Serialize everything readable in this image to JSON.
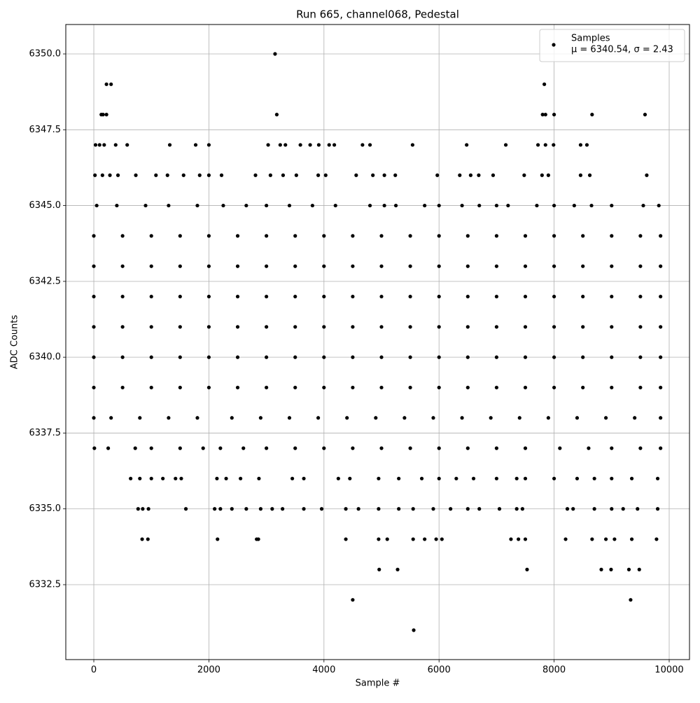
{
  "chart_data": {
    "type": "scatter",
    "title": "Run 665, channel068, Pedestal",
    "x_label": "Sample #",
    "y_label": "ADC Counts",
    "legend_stats": "μ = 6340.54, σ = 2.43",
    "legend_position": "upper right",
    "grid": true,
    "xlim": [
      -487,
      10353
    ],
    "xticks": [
      0,
      2000,
      4000,
      6000,
      8000,
      10000
    ],
    "ylim": [
      6330.03,
      6350.97
    ],
    "yticks": [
      6332.5,
      {
        "value": 6335,
        "label": "6335.0"
      },
      6337.5,
      {
        "value": 6340,
        "label": "6340.0"
      },
      6342.5,
      {
        "value": 6345,
        "label": "6345.0"
      },
      6347.5,
      {
        "value": 6350,
        "label": "6350.0"
      }
    ],
    "x": [
      3150,
      220,
      300,
      7830,
      130,
      160,
      220,
      3180,
      7800,
      7850,
      8000,
      8660,
      9580,
      30,
      100,
      180,
      380,
      580,
      1320,
      1770,
      2000,
      3030,
      3240,
      3330,
      3590,
      3760,
      3910,
      4090,
      4180,
      4670,
      4800,
      5540,
      6480,
      7160,
      7720,
      7850,
      7990,
      8460,
      8570,
      20,
      150,
      280,
      420,
      730,
      1080,
      1280,
      1560,
      1840,
      2000,
      2220,
      2810,
      3070,
      3290,
      3520,
      3900,
      4030,
      4560,
      4850,
      5050,
      5240,
      5970,
      6360,
      6550,
      6690,
      6940,
      7480,
      7790,
      7900,
      8460,
      8620,
      9610,
      50,
      400,
      900,
      1300,
      1800,
      2250,
      2650,
      3000,
      3400,
      3800,
      4200,
      4800,
      5050,
      5250,
      5750,
      6000,
      6400,
      6700,
      7000,
      7200,
      7700,
      8000,
      8350,
      8650,
      9000,
      9550,
      9820,
      0,
      500,
      1000,
      1500,
      2000,
      2500,
      3000,
      3500,
      4000,
      4500,
      5000,
      5500,
      6000,
      6500,
      7000,
      7500,
      8000,
      8500,
      9000,
      9500,
      9850,
      0,
      500,
      1000,
      1500,
      2000,
      2500,
      3000,
      3500,
      4000,
      4500,
      5000,
      5500,
      6000,
      6500,
      7000,
      7500,
      8000,
      8500,
      9000,
      9500,
      9850,
      0,
      500,
      1000,
      1500,
      2000,
      2500,
      3000,
      3500,
      4000,
      4500,
      5000,
      5500,
      6000,
      6500,
      7000,
      7500,
      8000,
      8500,
      9000,
      9500,
      9850,
      0,
      500,
      1000,
      1500,
      2000,
      2500,
      3000,
      3500,
      4000,
      4500,
      5000,
      5500,
      6000,
      6500,
      7000,
      7500,
      8000,
      8500,
      9000,
      9500,
      9850,
      0,
      500,
      1000,
      1500,
      2000,
      2500,
      3000,
      3500,
      4000,
      4500,
      5000,
      5500,
      6000,
      6500,
      7000,
      7500,
      8000,
      8500,
      9000,
      9500,
      9850,
      0,
      500,
      1000,
      1500,
      2000,
      2500,
      3000,
      3500,
      4000,
      4500,
      5000,
      5500,
      6000,
      6500,
      7000,
      7500,
      8000,
      8500,
      9000,
      9500,
      9850,
      0,
      300,
      800,
      1300,
      1800,
      2400,
      2900,
      3400,
      3900,
      4400,
      4900,
      5400,
      5900,
      6400,
      6900,
      7400,
      7900,
      8400,
      8900,
      9400,
      9850,
      10,
      250,
      720,
      1000,
      1500,
      1900,
      2200,
      2600,
      3000,
      3500,
      4000,
      4500,
      5000,
      5500,
      6000,
      6500,
      7000,
      7500,
      8100,
      8600,
      9000,
      9500,
      9850,
      640,
      800,
      1000,
      1200,
      1420,
      1520,
      2140,
      2300,
      2550,
      2870,
      3450,
      3650,
      4250,
      4450,
      4950,
      5300,
      5700,
      6000,
      6300,
      6600,
      7000,
      7350,
      7500,
      8000,
      8400,
      8700,
      9000,
      9350,
      9800,
      770,
      850,
      950,
      1600,
      2100,
      2200,
      2400,
      2650,
      2900,
      3100,
      3280,
      3650,
      3960,
      4380,
      4600,
      4950,
      5300,
      5550,
      5900,
      6200,
      6500,
      6700,
      7050,
      7350,
      7450,
      8230,
      8330,
      8700,
      9000,
      9200,
      9450,
      9800,
      840,
      940,
      2150,
      2830,
      2860,
      4380,
      4950,
      5100,
      5550,
      5750,
      5950,
      6050,
      7250,
      7380,
      7500,
      8200,
      8660,
      8900,
      9050,
      9350,
      9780,
      4960,
      5280,
      7530,
      8820,
      8990,
      9300,
      9480,
      4500,
      9330,
      5560
    ],
    "series": [
      {
        "name": "Samples",
        "color": "#000000",
        "values": [
          6350,
          6349,
          6349,
          6349,
          6348,
          6348,
          6348,
          6348,
          6348,
          6348,
          6348,
          6348,
          6348,
          6347,
          6347,
          6347,
          6347,
          6347,
          6347,
          6347,
          6347,
          6347,
          6347,
          6347,
          6347,
          6347,
          6347,
          6347,
          6347,
          6347,
          6347,
          6347,
          6347,
          6347,
          6347,
          6347,
          6347,
          6347,
          6347,
          6346,
          6346,
          6346,
          6346,
          6346,
          6346,
          6346,
          6346,
          6346,
          6346,
          6346,
          6346,
          6346,
          6346,
          6346,
          6346,
          6346,
          6346,
          6346,
          6346,
          6346,
          6346,
          6346,
          6346,
          6346,
          6346,
          6346,
          6346,
          6346,
          6346,
          6346,
          6346,
          6345,
          6345,
          6345,
          6345,
          6345,
          6345,
          6345,
          6345,
          6345,
          6345,
          6345,
          6345,
          6345,
          6345,
          6345,
          6345,
          6345,
          6345,
          6345,
          6345,
          6345,
          6345,
          6345,
          6345,
          6345,
          6345,
          6345,
          6344,
          6344,
          6344,
          6344,
          6344,
          6344,
          6344,
          6344,
          6344,
          6344,
          6344,
          6344,
          6344,
          6344,
          6344,
          6344,
          6344,
          6344,
          6344,
          6344,
          6344,
          6343,
          6343,
          6343,
          6343,
          6343,
          6343,
          6343,
          6343,
          6343,
          6343,
          6343,
          6343,
          6343,
          6343,
          6343,
          6343,
          6343,
          6343,
          6343,
          6343,
          6343,
          6342,
          6342,
          6342,
          6342,
          6342,
          6342,
          6342,
          6342,
          6342,
          6342,
          6342,
          6342,
          6342,
          6342,
          6342,
          6342,
          6342,
          6342,
          6342,
          6342,
          6342,
          6341,
          6341,
          6341,
          6341,
          6341,
          6341,
          6341,
          6341,
          6341,
          6341,
          6341,
          6341,
          6341,
          6341,
          6341,
          6341,
          6341,
          6341,
          6341,
          6341,
          6341,
          6340,
          6340,
          6340,
          6340,
          6340,
          6340,
          6340,
          6340,
          6340,
          6340,
          6340,
          6340,
          6340,
          6340,
          6340,
          6340,
          6340,
          6340,
          6340,
          6340,
          6340,
          6339,
          6339,
          6339,
          6339,
          6339,
          6339,
          6339,
          6339,
          6339,
          6339,
          6339,
          6339,
          6339,
          6339,
          6339,
          6339,
          6339,
          6339,
          6339,
          6339,
          6339,
          6338,
          6338,
          6338,
          6338,
          6338,
          6338,
          6338,
          6338,
          6338,
          6338,
          6338,
          6338,
          6338,
          6338,
          6338,
          6338,
          6338,
          6338,
          6338,
          6338,
          6338,
          6337,
          6337,
          6337,
          6337,
          6337,
          6337,
          6337,
          6337,
          6337,
          6337,
          6337,
          6337,
          6337,
          6337,
          6337,
          6337,
          6337,
          6337,
          6337,
          6337,
          6337,
          6337,
          6337,
          6336,
          6336,
          6336,
          6336,
          6336,
          6336,
          6336,
          6336,
          6336,
          6336,
          6336,
          6336,
          6336,
          6336,
          6336,
          6336,
          6336,
          6336,
          6336,
          6336,
          6336,
          6336,
          6336,
          6336,
          6336,
          6336,
          6336,
          6336,
          6336,
          6335,
          6335,
          6335,
          6335,
          6335,
          6335,
          6335,
          6335,
          6335,
          6335,
          6335,
          6335,
          6335,
          6335,
          6335,
          6335,
          6335,
          6335,
          6335,
          6335,
          6335,
          6335,
          6335,
          6335,
          6335,
          6335,
          6335,
          6335,
          6335,
          6335,
          6335,
          6335,
          6334,
          6334,
          6334,
          6334,
          6334,
          6334,
          6334,
          6334,
          6334,
          6334,
          6334,
          6334,
          6334,
          6334,
          6334,
          6334,
          6334,
          6334,
          6334,
          6334,
          6334,
          6333,
          6333,
          6333,
          6333,
          6333,
          6333,
          6333,
          6332,
          6332,
          6331
        ]
      }
    ]
  }
}
